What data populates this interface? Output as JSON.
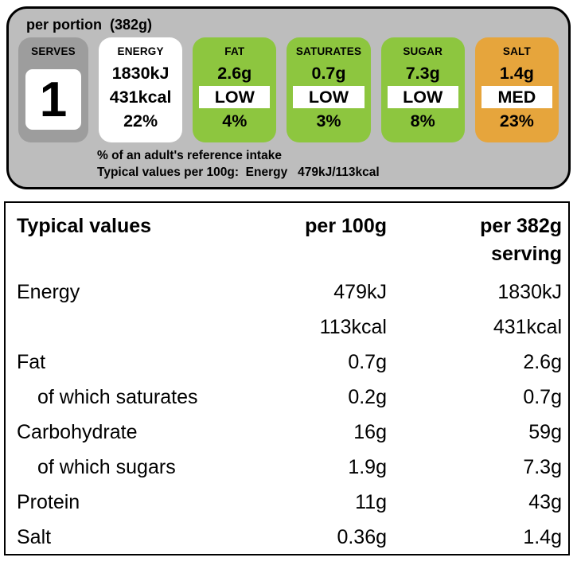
{
  "colors": {
    "panel_bg": "#bdbdbd",
    "panel_border": "#000000",
    "serves_grey": "#9d9d9d",
    "white": "#ffffff",
    "green": "#8dc63f",
    "amber": "#e6a53c",
    "text": "#000000"
  },
  "panel": {
    "header": "per portion  (382g)",
    "tiles": [
      {
        "kind": "serves",
        "label": "SERVES",
        "value": "1",
        "color": "serves_grey"
      },
      {
        "kind": "energy",
        "label": "ENERGY",
        "values": [
          "1830kJ",
          "431kcal",
          "22%"
        ],
        "color": "white"
      },
      {
        "kind": "level",
        "label": "FAT",
        "amount": "2.6g",
        "level": "LOW",
        "percent": "4%",
        "color": "green"
      },
      {
        "kind": "level",
        "label": "SATURATES",
        "amount": "0.7g",
        "level": "LOW",
        "percent": "3%",
        "color": "green"
      },
      {
        "kind": "level",
        "label": "SUGAR",
        "amount": "7.3g",
        "level": "LOW",
        "percent": "8%",
        "color": "green"
      },
      {
        "kind": "level",
        "label": "SALT",
        "amount": "1.4g",
        "level": "MED",
        "percent": "23%",
        "color": "amber"
      }
    ],
    "footnote_line1": "% of an adult's reference intake",
    "footnote_line2": "Typical values per 100g:  Energy   479kJ/113kcal"
  },
  "table": {
    "header": {
      "col1": "Typical values",
      "col2": "per 100g",
      "col3": "per 382g\nserving"
    },
    "rows": [
      {
        "label": "Energy",
        "indent": false,
        "per_100g": "479kJ",
        "per_serving": "1830kJ"
      },
      {
        "label": "",
        "indent": false,
        "per_100g": "113kcal",
        "per_serving": "431kcal"
      },
      {
        "label": "Fat",
        "indent": false,
        "per_100g": "0.7g",
        "per_serving": "2.6g"
      },
      {
        "label": "of which saturates",
        "indent": true,
        "per_100g": "0.2g",
        "per_serving": "0.7g"
      },
      {
        "label": "Carbohydrate",
        "indent": false,
        "per_100g": "16g",
        "per_serving": "59g"
      },
      {
        "label": "of which sugars",
        "indent": true,
        "per_100g": "1.9g",
        "per_serving": "7.3g"
      },
      {
        "label": "Protein",
        "indent": false,
        "per_100g": "11g",
        "per_serving": "43g"
      },
      {
        "label": "Salt",
        "indent": false,
        "per_100g": "0.36g",
        "per_serving": "1.4g"
      }
    ]
  }
}
